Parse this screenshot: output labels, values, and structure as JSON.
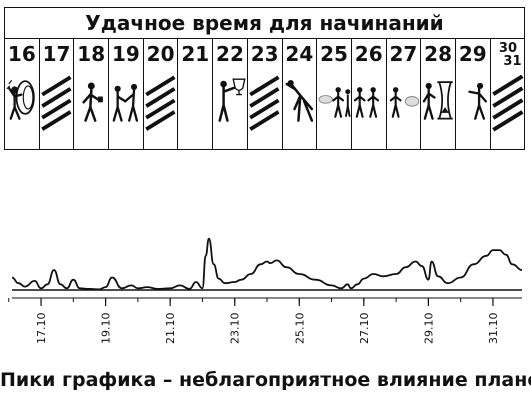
{
  "calendar": {
    "title": "Удачное время для начинаний",
    "days": [
      {
        "label": "16",
        "icon": "figure-with-wreath-icon"
      },
      {
        "label": "17",
        "icon": "stripes-icon"
      },
      {
        "label": "18",
        "icon": "figure-walking-icon"
      },
      {
        "label": "19",
        "icon": "figures-handshake-icon"
      },
      {
        "label": "20",
        "icon": "stripes-icon"
      },
      {
        "label": "21",
        "icon": ""
      },
      {
        "label": "22",
        "icon": "figure-with-trophy-icon"
      },
      {
        "label": "23",
        "icon": "stripes-icon"
      },
      {
        "label": "24",
        "icon": "figure-stretching-icon"
      },
      {
        "label": "25",
        "icon": "group-of-figures-icon"
      },
      {
        "label": "26",
        "icon": "group-of-figures-icon"
      },
      {
        "label": "27",
        "icon": "group-of-figures-icon"
      },
      {
        "label": "28",
        "icon": "figure-with-hourglass-icon"
      },
      {
        "label": "29",
        "icon": "figure-with-hourglass-icon"
      },
      {
        "label_top": "30",
        "label_bottom": "31",
        "icon": "stripes-icon"
      }
    ]
  },
  "chart_data": {
    "type": "line",
    "title": "",
    "caption": "Пики графика – неблагоприятное влияние планет",
    "xlabel": "",
    "ylabel": "",
    "x_ticks": [
      "17.10",
      "19.10",
      "21.10",
      "23.10",
      "25.10",
      "27.10",
      "29.10",
      "31.10"
    ],
    "x_tick_days": [
      17,
      19,
      21,
      23,
      25,
      27,
      29,
      31
    ],
    "xlim": [
      16.1,
      31.9
    ],
    "ylim": [
      0,
      100
    ],
    "baseline": 0,
    "grid": false,
    "series": [
      {
        "x": [
          16.1,
          16.3,
          16.5,
          16.8,
          17.0,
          17.2,
          17.4,
          17.6,
          17.8,
          18.0,
          18.2,
          18.5,
          18.8,
          19.0,
          19.2,
          19.5,
          19.8,
          20.0,
          20.3,
          20.6,
          21.0,
          21.3,
          21.6,
          21.8,
          22.0,
          22.1,
          22.2,
          22.35,
          22.5,
          22.7,
          23.0,
          23.2,
          23.5,
          23.8,
          24.0,
          24.1,
          24.3,
          24.6,
          25.0,
          25.5,
          26.0,
          26.3,
          26.5,
          26.6,
          26.8,
          27.0,
          27.3,
          27.6,
          28.0,
          28.3,
          28.6,
          28.8,
          29.0,
          29.1,
          29.3,
          29.6,
          30.0,
          30.4,
          30.8,
          31.0,
          31.2,
          31.4,
          31.6,
          31.9
        ],
        "y": [
          22,
          12,
          6,
          16,
          3,
          10,
          35,
          10,
          3,
          18,
          3,
          2,
          1,
          5,
          22,
          3,
          8,
          3,
          5,
          2,
          3,
          8,
          2,
          14,
          3,
          60,
          90,
          45,
          20,
          12,
          14,
          18,
          28,
          45,
          50,
          47,
          52,
          40,
          28,
          18,
          8,
          3,
          10,
          3,
          10,
          20,
          28,
          24,
          28,
          40,
          50,
          42,
          18,
          50,
          24,
          12,
          22,
          45,
          60,
          70,
          70,
          62,
          45,
          35
        ]
      }
    ]
  }
}
